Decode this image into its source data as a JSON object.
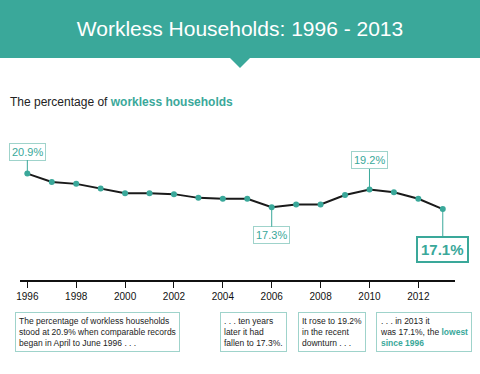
{
  "chart_data": {
    "type": "line",
    "title": "Workless Households: 1996 - 2013",
    "subtitle": {
      "text": "The percentage of workless households",
      "highlight": "workless households"
    },
    "x": [
      1996,
      1997,
      1998,
      1999,
      2000,
      2001,
      2002,
      2003,
      2004,
      2005,
      2006,
      2007,
      2008,
      2009,
      2010,
      2011,
      2012,
      2013
    ],
    "values": [
      20.9,
      20.0,
      19.8,
      19.3,
      18.8,
      18.8,
      18.7,
      18.3,
      18.2,
      18.2,
      17.3,
      17.6,
      17.6,
      18.6,
      19.2,
      18.9,
      18.2,
      17.1
    ],
    "value_labels": [
      "20.9%",
      null,
      null,
      null,
      null,
      null,
      null,
      null,
      null,
      null,
      "17.3%",
      null,
      null,
      null,
      "19.2%",
      null,
      null,
      "17.1%"
    ],
    "color": "#1a1a1a",
    "marker": "circle",
    "xlim": [
      1995.7,
      2013.5
    ],
    "xticks": [
      1996,
      1998,
      2000,
      2002,
      2004,
      2006,
      2008,
      2010,
      2012
    ],
    "ylim": [
      9.5,
      24.5
    ],
    "yticks": [],
    "tick_labels": "x",
    "grid": false,
    "notes": [
      {
        "lines": [
          "The percentage of workless households",
          "stood at 20.9% when comparable records",
          "began in April to June 1996 . . ."
        ]
      },
      {
        "lines": [
          ". . . ten years",
          "later it had",
          "fallen to 17.3%."
        ]
      },
      {
        "lines": [
          "It rose to 19.2%",
          "in the recent",
          "downturn . . ."
        ]
      },
      {
        "lines": [
          ". . . in 2013 it",
          "was 17.1%, the lowest",
          "since 1996"
        ],
        "highlight": [
          "lowest",
          "since 1996"
        ]
      }
    ]
  }
}
